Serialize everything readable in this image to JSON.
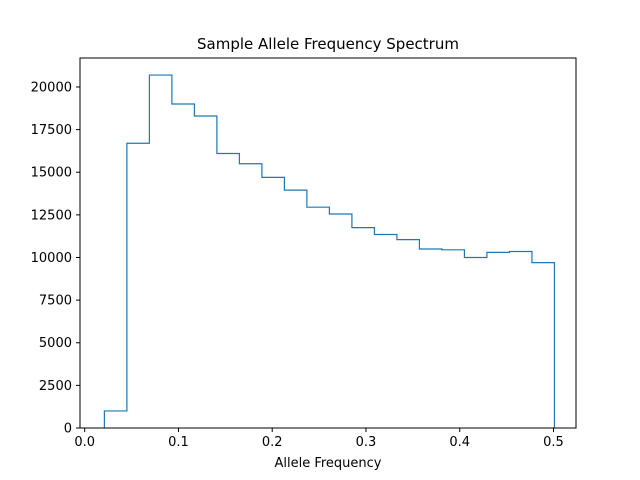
{
  "chart_data": {
    "type": "histogram-step",
    "title": "Sample Allele Frequency Spectrum",
    "xlabel": "Allele Frequency",
    "ylabel": "",
    "xlim": [
      -0.005,
      0.524
    ],
    "ylim": [
      0,
      21700
    ],
    "x_ticks": [
      {
        "value": 0.0,
        "label": "0.0"
      },
      {
        "value": 0.1,
        "label": "0.1"
      },
      {
        "value": 0.2,
        "label": "0.2"
      },
      {
        "value": 0.3,
        "label": "0.3"
      },
      {
        "value": 0.4,
        "label": "0.4"
      },
      {
        "value": 0.5,
        "label": "0.5"
      }
    ],
    "y_ticks": [
      {
        "value": 0,
        "label": "0"
      },
      {
        "value": 2500,
        "label": "2500"
      },
      {
        "value": 5000,
        "label": "5000"
      },
      {
        "value": 7500,
        "label": "7500"
      },
      {
        "value": 10000,
        "label": "10000"
      },
      {
        "value": 12500,
        "label": "12500"
      },
      {
        "value": 15000,
        "label": "15000"
      },
      {
        "value": 17500,
        "label": "17500"
      },
      {
        "value": 20000,
        "label": "20000"
      }
    ],
    "color": "#1f77b4",
    "grid": false,
    "bin_edges": [
      0.021,
      0.045,
      0.069,
      0.093,
      0.117,
      0.141,
      0.165,
      0.189,
      0.213,
      0.237,
      0.261,
      0.285,
      0.309,
      0.333,
      0.357,
      0.381,
      0.405,
      0.429,
      0.453,
      0.477,
      0.501
    ],
    "counts": [
      1000,
      16700,
      20700,
      19000,
      18300,
      16100,
      15500,
      14700,
      13950,
      12950,
      12550,
      11750,
      11350,
      11050,
      10500,
      10450,
      10000,
      10300,
      10350,
      9700
    ]
  }
}
